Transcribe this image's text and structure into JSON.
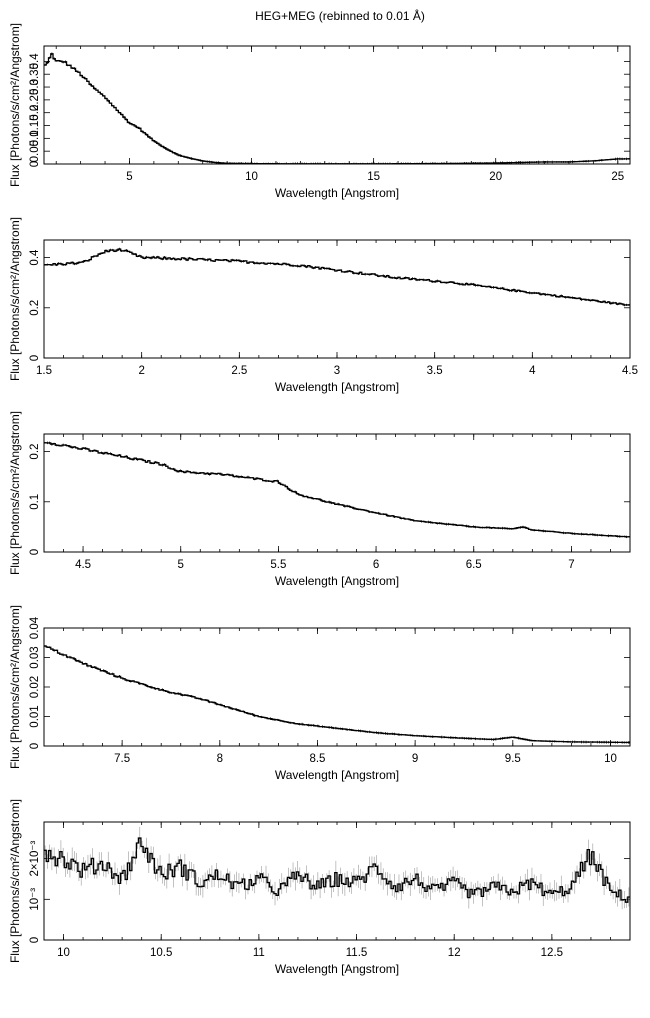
{
  "figure_title": "HEG+MEG (rebinned to 0.01 Å)",
  "chart_data": [
    {
      "type": "line",
      "xlabel": "Wavelength [Angstrom]",
      "ylabel": "Flux [Photons/s/cm²/Angstrom]",
      "xlim": [
        1.5,
        25.5
      ],
      "ylim": [
        0,
        0.46
      ],
      "xticks": [
        5,
        10,
        15,
        20,
        25
      ],
      "yticks": [
        0,
        0.05,
        0.1,
        0.15,
        0.2,
        0.25,
        0.3,
        0.35,
        0.4
      ],
      "yticklabels": [
        "0",
        "0.05",
        "0.1",
        "0.15",
        "0.2",
        "0.25",
        "0.3",
        "0.35",
        "0.4"
      ],
      "series": [
        {
          "x": [
            1.5,
            1.7,
            1.8,
            1.9,
            2.0,
            2.3,
            2.6,
            3.0,
            3.5,
            4.0,
            4.5,
            5.0,
            5.4,
            5.5,
            6.0,
            6.5,
            7.0,
            7.5,
            8.0,
            8.5,
            9.0,
            10.0,
            12.0,
            15.0,
            18.0,
            20.0,
            21.0,
            22.0,
            23.0,
            24.0,
            25.0,
            25.5
          ],
          "y": [
            0.38,
            0.4,
            0.44,
            0.41,
            0.4,
            0.4,
            0.38,
            0.35,
            0.3,
            0.26,
            0.21,
            0.16,
            0.14,
            0.13,
            0.09,
            0.06,
            0.035,
            0.022,
            0.012,
            0.006,
            0.003,
            0.0015,
            0.0008,
            0.0008,
            0.002,
            0.004,
            0.006,
            0.008,
            0.008,
            0.012,
            0.02,
            0.02
          ]
        }
      ]
    },
    {
      "type": "line",
      "xlabel": "Wavelength [Angstrom]",
      "ylabel": "Flux [Photons/s/cm²/Angstrom]",
      "xlim": [
        1.5,
        4.5
      ],
      "ylim": [
        0,
        0.47
      ],
      "xticks": [
        1.5,
        2,
        2.5,
        3,
        3.5,
        4,
        4.5
      ],
      "yticks": [
        0,
        0.2,
        0.4
      ],
      "yticklabels": [
        "0",
        "0.2",
        "0.4"
      ],
      "series": [
        {
          "x": [
            1.5,
            1.6,
            1.7,
            1.75,
            1.8,
            1.85,
            1.9,
            1.95,
            2.0,
            2.2,
            2.5,
            2.8,
            3.0,
            3.3,
            3.6,
            3.9,
            4.2,
            4.5
          ],
          "y": [
            0.37,
            0.375,
            0.38,
            0.4,
            0.42,
            0.43,
            0.43,
            0.415,
            0.4,
            0.395,
            0.385,
            0.37,
            0.35,
            0.32,
            0.3,
            0.27,
            0.24,
            0.21
          ]
        }
      ]
    },
    {
      "type": "line",
      "xlabel": "Wavelength [Angstrom]",
      "ylabel": "Flux [Photons/s/cm²/Angstrom]",
      "xlim": [
        4.3,
        7.3
      ],
      "ylim": [
        0,
        0.235
      ],
      "xticks": [
        4.5,
        5,
        5.5,
        6,
        6.5,
        7
      ],
      "yticks": [
        0,
        0.1,
        0.2
      ],
      "yticklabels": [
        "0",
        "0.1",
        "0.2"
      ],
      "series": [
        {
          "x": [
            4.3,
            4.5,
            4.7,
            4.9,
            5.0,
            5.2,
            5.4,
            5.5,
            5.6,
            5.8,
            6.0,
            6.2,
            6.5,
            6.7,
            6.75,
            6.8,
            7.0,
            7.3
          ],
          "y": [
            0.22,
            0.205,
            0.19,
            0.175,
            0.16,
            0.155,
            0.145,
            0.14,
            0.115,
            0.095,
            0.078,
            0.062,
            0.05,
            0.046,
            0.05,
            0.044,
            0.037,
            0.03
          ]
        }
      ]
    },
    {
      "type": "line",
      "xlabel": "Wavelength [Angstrom]",
      "ylabel": "Flux [Photons/s/cm²/Angstrom]",
      "xlim": [
        7.1,
        10.1
      ],
      "ylim": [
        0,
        0.04
      ],
      "xticks": [
        7.5,
        8,
        8.5,
        9,
        9.5,
        10
      ],
      "yticks": [
        0,
        0.01,
        0.02,
        0.03,
        0.04
      ],
      "yticklabels": [
        "0",
        "0.01",
        "0.02",
        "0.03",
        "0.04"
      ],
      "series": [
        {
          "x": [
            7.1,
            7.2,
            7.3,
            7.5,
            7.7,
            7.9,
            8.0,
            8.2,
            8.4,
            8.6,
            8.8,
            9.0,
            9.2,
            9.4,
            9.5,
            9.6,
            9.8,
            10.1
          ],
          "y": [
            0.034,
            0.031,
            0.028,
            0.023,
            0.019,
            0.016,
            0.014,
            0.01,
            0.0075,
            0.006,
            0.0045,
            0.0035,
            0.0028,
            0.0022,
            0.003,
            0.0018,
            0.0014,
            0.0012
          ]
        }
      ]
    },
    {
      "type": "line",
      "xlabel": "Wavelength [Angstrom]",
      "ylabel": "Flux [Photons/s/cm²/Angstrom]",
      "xlim": [
        9.9,
        12.9
      ],
      "ylim": [
        0,
        0.0029
      ],
      "xticks": [
        10,
        10.5,
        11,
        11.5,
        12,
        12.5
      ],
      "yticks": [
        0,
        0.001,
        0.002
      ],
      "yticklabels": [
        "0",
        "10⁻³",
        "2×10⁻³"
      ],
      "series": [
        {
          "x": [
            9.9,
            10.0,
            10.1,
            10.2,
            10.3,
            10.4,
            10.5,
            10.6,
            10.7,
            10.8,
            10.9,
            11.0,
            11.1,
            11.2,
            11.3,
            11.4,
            11.5,
            11.6,
            11.7,
            11.8,
            11.9,
            12.0,
            12.1,
            12.2,
            12.3,
            12.4,
            12.5,
            12.6,
            12.7,
            12.8,
            12.9
          ],
          "y": [
            0.0022,
            0.002,
            0.0017,
            0.0019,
            0.0015,
            0.0024,
            0.0016,
            0.0018,
            0.0014,
            0.0016,
            0.0013,
            0.0015,
            0.0012,
            0.0016,
            0.0013,
            0.0015,
            0.0014,
            0.0018,
            0.0013,
            0.0015,
            0.0012,
            0.0014,
            0.0011,
            0.0013,
            0.0012,
            0.0014,
            0.0011,
            0.0013,
            0.0021,
            0.0012,
            0.001
          ]
        }
      ]
    }
  ]
}
